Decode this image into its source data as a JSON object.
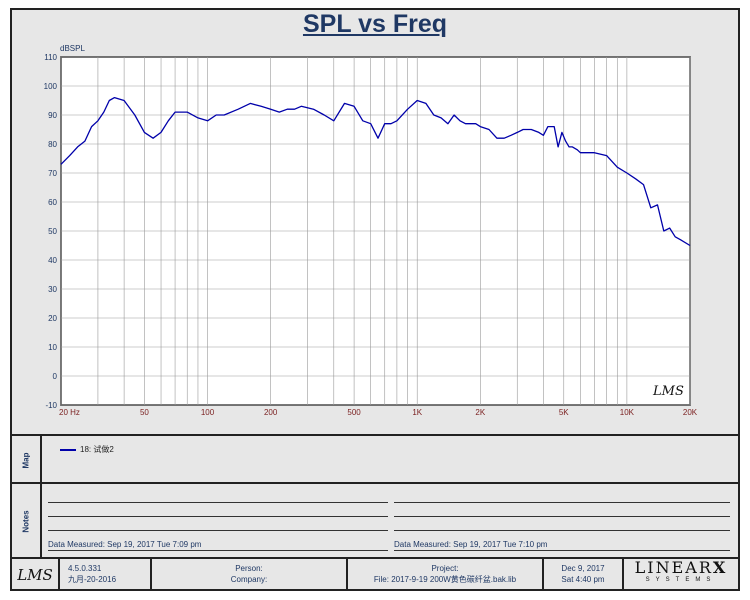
{
  "chart_data": {
    "type": "line",
    "title": "SPL vs Freq",
    "ylabel": "dBSPL",
    "xlabel": "",
    "x_scale": "log",
    "xlim": [
      20,
      20000
    ],
    "ylim": [
      -10,
      110
    ],
    "y_ticks": [
      "110",
      "100",
      "90",
      "80",
      "70",
      "60",
      "50",
      "40",
      "30",
      "20",
      "10",
      "0",
      "-10"
    ],
    "x_tick_values": [
      20,
      50,
      100,
      200,
      500,
      1000,
      2000,
      5000,
      10000,
      20000
    ],
    "x_tick_labels": [
      "20  Hz",
      "50",
      "100",
      "200",
      "500",
      "1K",
      "2K",
      "5K",
      "10K",
      "20K"
    ],
    "grid": true,
    "line_color": "#0000aa",
    "series": [
      {
        "name": "18: 试做2",
        "x": [
          20,
          22,
          24,
          26,
          28,
          30,
          32,
          34,
          36,
          40,
          45,
          50,
          55,
          60,
          65,
          70,
          80,
          90,
          100,
          110,
          120,
          140,
          160,
          180,
          200,
          220,
          240,
          260,
          280,
          320,
          360,
          400,
          450,
          500,
          550,
          600,
          650,
          700,
          750,
          800,
          900,
          1000,
          1100,
          1200,
          1300,
          1400,
          1500,
          1600,
          1700,
          1800,
          1900,
          2000,
          2200,
          2400,
          2600,
          2800,
          3000,
          3200,
          3500,
          3800,
          4000,
          4200,
          4500,
          4700,
          4900,
          5100,
          5300,
          5500,
          5800,
          6000,
          6500,
          7000,
          8000,
          9000,
          10000,
          11000,
          12000,
          13000,
          14000,
          15000,
          16000,
          17000,
          18000,
          20000
        ],
        "values": [
          73,
          76,
          79,
          81,
          86,
          88,
          91,
          95,
          96,
          95,
          90,
          84,
          82,
          84,
          88,
          91,
          91,
          89,
          88,
          90,
          90,
          92,
          94,
          93,
          92,
          91,
          92,
          92,
          93,
          92,
          90,
          88,
          94,
          93,
          88,
          87,
          82,
          87,
          87,
          88,
          92,
          95,
          94,
          90,
          89,
          87,
          90,
          88,
          87,
          87,
          87,
          86,
          85,
          82,
          82,
          83,
          84,
          85,
          85,
          84,
          83,
          86,
          86,
          79,
          84,
          81,
          79,
          79,
          78,
          77,
          77,
          77,
          76,
          72,
          70,
          68,
          66,
          58,
          59,
          50,
          51,
          48,
          47,
          45
        ]
      }
    ]
  },
  "map_label": "Map",
  "notes_label": "Notes",
  "legend_entry": "18: 试做2",
  "notes": {
    "left_measured": "Data Measured: Sep 19, 2017  Tue  7:09 pm",
    "right_measured": "Data Measured: Sep 19, 2017  Tue  7:10 pm"
  },
  "footer": {
    "logo": "LMS",
    "version": "4.5.0.331",
    "version_date": "九月-20-2016",
    "person_label": "Person:",
    "company_label": "Company:",
    "project_label": "Project:",
    "file_label": "File: 2017-9-19 200W黄色碳纤盆.bak.lib",
    "date": "Dec  9, 2017",
    "time": "Sat  4:40 pm",
    "brand": "LINEAR",
    "brand_x": "X",
    "brand_sub": "SYSTEMS"
  },
  "watermark": "LMS"
}
